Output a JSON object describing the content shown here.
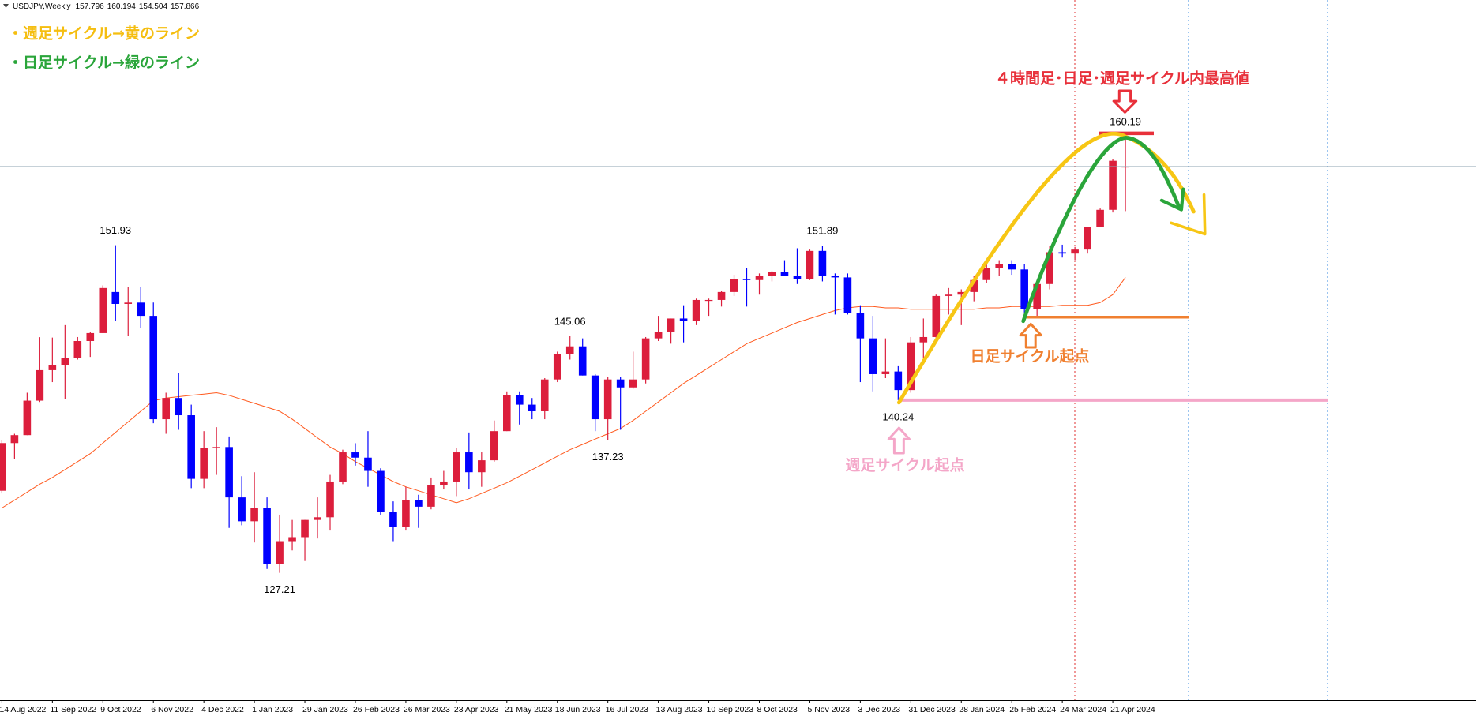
{
  "chart_data": {
    "type": "candlestick",
    "symbol": "USDJPY,Weekly",
    "categories": [
      "14 Aug 2022",
      null,
      null,
      null,
      "11 Sep 2022",
      null,
      null,
      null,
      "9 Oct 2022",
      null,
      null,
      null,
      "6 Nov 2022",
      null,
      null,
      null,
      "4 Dec 2022",
      null,
      null,
      null,
      "1 Jan 2023",
      null,
      null,
      null,
      "29 Jan 2023",
      null,
      null,
      null,
      "26 Feb 2023",
      null,
      null,
      null,
      "26 Mar 2023",
      null,
      null,
      null,
      "23 Apr 2023",
      null,
      null,
      null,
      "21 May 2023",
      null,
      null,
      null,
      "18 Jun 2023",
      null,
      null,
      null,
      "16 Jul 2023",
      null,
      null,
      null,
      "13 Aug 2023",
      null,
      null,
      null,
      "10 Sep 2023",
      null,
      null,
      null,
      "8 Oct 2023",
      null,
      null,
      null,
      "5 Nov 2023",
      null,
      null,
      null,
      "3 Dec 2023",
      null,
      null,
      null,
      "31 Dec 2023",
      null,
      null,
      null,
      "28 Jan 2024",
      null,
      null,
      null,
      "25 Feb 2024",
      null,
      null,
      null,
      "24 Mar 2024",
      null,
      null,
      null,
      "21 Apr 2024",
      null
    ],
    "open": [
      133.4,
      137.0,
      137.6,
      140.2,
      142.5,
      142.9,
      143.4,
      144.7,
      145.3,
      148.4,
      147.5,
      147.6,
      146.6,
      138.8,
      140.4,
      139.1,
      134.3,
      136.6,
      136.7,
      132.9,
      131.1,
      132.1,
      127.9,
      129.6,
      129.9,
      131.2,
      131.4,
      134.1,
      136.3,
      135.9,
      134.9,
      131.8,
      130.7,
      132.7,
      132.2,
      133.8,
      134.1,
      136.3,
      134.8,
      135.7,
      137.9,
      140.6,
      139.9,
      139.4,
      141.8,
      143.7,
      144.3,
      142.1,
      138.8,
      141.8,
      141.2,
      141.8,
      144.9,
      145.4,
      146.4,
      146.2,
      147.8,
      147.8,
      148.4,
      149.4,
      149.3,
      149.6,
      149.9,
      149.6,
      149.4,
      151.5,
      149.6,
      149.5,
      146.8,
      144.9,
      142.2,
      142.4,
      141.0,
      144.6,
      145.0,
      148.1,
      148.2,
      148.4,
      149.3,
      150.2,
      150.5,
      150.1,
      147.1,
      149.0,
      151.4,
      151.3,
      151.6,
      153.3,
      154.6,
      157.796
    ],
    "high": [
      137.2,
      137.7,
      140.8,
      144.99,
      144.96,
      145.9,
      145.0,
      145.4,
      148.9,
      151.93,
      148.8,
      148.8,
      147.6,
      140.8,
      142.3,
      139.9,
      137.9,
      138.2,
      137.5,
      134.5,
      134.8,
      132.9,
      131.6,
      131.2,
      131.2,
      132.9,
      134.6,
      136.5,
      136.99,
      137.9,
      135.1,
      132.6,
      133.7,
      133.1,
      134.4,
      134.9,
      136.6,
      137.8,
      136.3,
      138.7,
      140.9,
      140.9,
      140.4,
      141.9,
      143.9,
      145.06,
      144.9,
      142.2,
      142.0,
      142.0,
      143.9,
      145.0,
      146.6,
      146.4,
      147.4,
      147.9,
      147.9,
      148.5,
      149.7,
      150.2,
      149.8,
      149.99,
      150.8,
      151.7,
      151.6,
      151.89,
      149.8,
      149.8,
      147.4,
      146.6,
      144.9,
      142.8,
      145.0,
      146.4,
      148.2,
      148.7,
      148.6,
      149.6,
      150.9,
      150.8,
      150.8,
      150.5,
      149.2,
      151.9,
      151.97,
      151.8,
      153.3,
      154.7,
      158.4,
      160.194
    ],
    "low": [
      133.2,
      135.8,
      137.6,
      140.1,
      141.6,
      140.3,
      143.3,
      143.5,
      145.3,
      146.2,
      145.1,
      145.7,
      138.5,
      137.7,
      138.0,
      133.6,
      133.6,
      134.6,
      130.6,
      130.8,
      129.5,
      127.5,
      127.21,
      128.9,
      128.1,
      129.8,
      130.4,
      133.9,
      135.3,
      133.7,
      131.6,
      129.6,
      130.4,
      130.6,
      132.0,
      133.5,
      133.0,
      133.5,
      133.7,
      135.6,
      137.9,
      138.4,
      138.8,
      138.8,
      141.6,
      143.3,
      142.1,
      137.9,
      137.23,
      138.0,
      141.1,
      141.5,
      144.7,
      144.5,
      144.6,
      145.9,
      146.6,
      147.3,
      148.1,
      147.3,
      148.2,
      149.2,
      149.6,
      149.0,
      149.3,
      149.2,
      146.7,
      146.7,
      141.6,
      140.9,
      141.9,
      140.24,
      140.8,
      143.4,
      144.6,
      146.7,
      145.9,
      147.7,
      149.1,
      149.6,
      149.7,
      146.5,
      146.5,
      148.6,
      151.0,
      150.8,
      151.3,
      153.3,
      154.4,
      154.504
    ],
    "close": [
      137.0,
      137.6,
      140.2,
      142.5,
      142.9,
      143.4,
      144.7,
      145.3,
      148.7,
      147.5,
      147.6,
      146.6,
      138.8,
      140.4,
      139.1,
      134.3,
      136.6,
      136.7,
      132.9,
      131.1,
      132.1,
      127.9,
      129.6,
      129.9,
      131.2,
      131.4,
      134.1,
      136.3,
      135.9,
      134.9,
      131.8,
      130.7,
      132.7,
      132.2,
      133.8,
      134.1,
      136.3,
      134.8,
      135.7,
      137.9,
      140.6,
      139.9,
      139.4,
      141.8,
      143.7,
      144.3,
      142.1,
      138.8,
      141.8,
      141.2,
      141.8,
      144.9,
      145.4,
      146.4,
      146.2,
      147.8,
      147.8,
      148.4,
      149.4,
      149.3,
      149.6,
      149.9,
      149.6,
      149.4,
      151.5,
      149.6,
      149.5,
      146.8,
      144.9,
      142.2,
      142.4,
      141.0,
      144.6,
      145.0,
      148.1,
      148.2,
      148.4,
      149.3,
      150.2,
      150.5,
      150.1,
      147.1,
      149.0,
      151.4,
      151.3,
      151.6,
      153.3,
      154.6,
      158.3,
      157.866
    ],
    "moving_average": {
      "color": "#ff5a1f",
      "values": [
        132.1,
        132.7,
        133.3,
        133.9,
        134.4,
        135.0,
        135.6,
        136.2,
        137.0,
        137.8,
        138.6,
        139.4,
        140.2,
        140.4,
        140.5,
        140.6,
        140.7,
        140.8,
        140.6,
        140.3,
        140.0,
        139.7,
        139.4,
        138.8,
        138.1,
        137.4,
        136.7,
        136.2,
        135.6,
        135.1,
        134.6,
        134.1,
        133.7,
        133.4,
        133.1,
        132.8,
        132.5,
        132.8,
        133.2,
        133.6,
        134.0,
        134.5,
        135.0,
        135.5,
        136.0,
        136.5,
        136.9,
        137.3,
        137.7,
        138.1,
        138.7,
        139.4,
        140.1,
        140.8,
        141.5,
        142.1,
        142.7,
        143.3,
        143.9,
        144.5,
        144.9,
        145.3,
        145.7,
        146.1,
        146.4,
        146.7,
        147.0,
        147.2,
        147.3,
        147.3,
        147.2,
        147.2,
        147.1,
        147.1,
        147.1,
        147.1,
        147.1,
        147.1,
        147.2,
        147.2,
        147.3,
        147.3,
        147.3,
        147.3,
        147.4,
        147.4,
        147.4,
        147.6,
        148.2,
        149.5
      ]
    },
    "up_color": "#dc1e3c",
    "down_color": "#0000ff",
    "ylim": [
      117.6,
      170.43
    ],
    "peak_label": "160.19",
    "annotations": {
      "weekly_legend": "・週足サイクル→黄のライン",
      "daily_legend": "・日足サイクル→緑のライン",
      "peak_note": "４時間足･日足･週足サイクル内最高値",
      "daily_start": "日足サイクル起点",
      "weekly_start": "週足サイクル起点"
    }
  }
}
